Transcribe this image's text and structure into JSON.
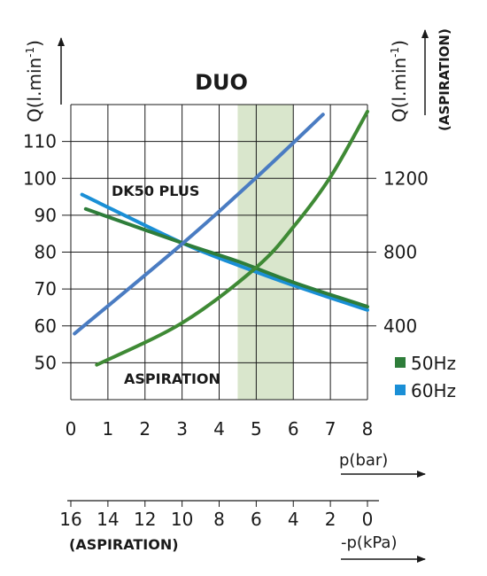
{
  "chart_data": {
    "type": "line",
    "title": "DUO",
    "x_axis": {
      "label": "p(bar)",
      "range": [
        0,
        8
      ],
      "ticks": [
        "0",
        "1",
        "2",
        "3",
        "4",
        "5",
        "6",
        "7",
        "8"
      ]
    },
    "x2_axis": {
      "label": "-p(kPa)",
      "sublabel": "(ASPIRATION)",
      "ticks": [
        "16",
        "14",
        "12",
        "10",
        "8",
        "6",
        "4",
        "2",
        "0"
      ]
    },
    "y_left": {
      "label_main": "Q(l.min",
      "label_sup": "-1",
      "label_end": ")",
      "range": [
        40,
        120
      ],
      "ticks": [
        "110",
        "100",
        "90",
        "80",
        "70",
        "60",
        "50"
      ]
    },
    "y_right": {
      "label_main": "Q(l.min",
      "label_sup": "-1",
      "label_end": ")",
      "sublabel": "(ASPIRATION)",
      "range": [
        0,
        1600
      ],
      "ticks": [
        "1200",
        "800",
        "400"
      ]
    },
    "highlight_band": {
      "x_from": 4.5,
      "x_to": 6,
      "color": "#d9e6cc"
    },
    "annotations": {
      "dk50": "DK50 PLUS",
      "aspiration": "ASPIRATION"
    },
    "legend": [
      {
        "label": "50Hz",
        "color": "#2e7d3a"
      },
      {
        "label": "60Hz",
        "color": "#1a8fd6"
      }
    ],
    "series": [
      {
        "name": "DK50 PLUS",
        "axis": "left",
        "color": "#1a8fd6",
        "x": [
          0.3,
          3,
          4.5,
          6,
          8
        ],
        "y": [
          95.6,
          82.5,
          76.5,
          71,
          64.3
        ]
      },
      {
        "name": "DK50 PLUS",
        "axis": "left",
        "color": "#2e7d3a",
        "x": [
          0.4,
          3,
          4.5,
          6,
          8
        ],
        "y": [
          91.7,
          82.5,
          77.5,
          71.8,
          65.2
        ]
      },
      {
        "name": "",
        "axis": "left",
        "color": "#4a7cc2",
        "x": [
          0.1,
          3,
          5,
          6.8
        ],
        "y": [
          57.9,
          82.2,
          100.2,
          117.3
        ]
      },
      {
        "name": "ASPIRATION",
        "axis": "right",
        "color": "#3f8a35",
        "x": [
          0.7,
          3,
          5,
          6,
          7,
          8
        ],
        "y": [
          189,
          416,
          717,
          936,
          1207,
          1562
        ]
      }
    ]
  }
}
